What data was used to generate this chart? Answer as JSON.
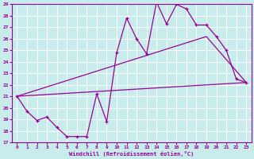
{
  "title": "",
  "xlabel": "Windchill (Refroidissement éolien,°C)",
  "bg_color": "#c8ecec",
  "line_color": "#990099",
  "grid_color": "#ffffff",
  "xlim": [
    -0.5,
    23.5
  ],
  "ylim": [
    17,
    29
  ],
  "yticks": [
    17,
    18,
    19,
    20,
    21,
    22,
    23,
    24,
    25,
    26,
    27,
    28,
    29
  ],
  "xticks": [
    0,
    1,
    2,
    3,
    4,
    5,
    6,
    7,
    8,
    9,
    10,
    11,
    12,
    13,
    14,
    15,
    16,
    17,
    18,
    19,
    20,
    21,
    22,
    23
  ],
  "line1_x": [
    0,
    1,
    2,
    3,
    4,
    5,
    6,
    7,
    8,
    9,
    10,
    11,
    12,
    13,
    14,
    15,
    16,
    17,
    18,
    19,
    20,
    21,
    22,
    23
  ],
  "line1_y": [
    21.0,
    19.7,
    18.9,
    19.2,
    18.3,
    17.5,
    17.5,
    17.5,
    21.2,
    18.8,
    24.8,
    27.8,
    26.0,
    24.7,
    29.2,
    27.3,
    29.0,
    28.6,
    27.2,
    27.2,
    26.2,
    25.0,
    22.5,
    22.2
  ],
  "line2_x": [
    0,
    23
  ],
  "line2_y": [
    21.0,
    22.2
  ],
  "line3_x": [
    0,
    19,
    23
  ],
  "line3_y": [
    21.0,
    26.2,
    22.2
  ]
}
